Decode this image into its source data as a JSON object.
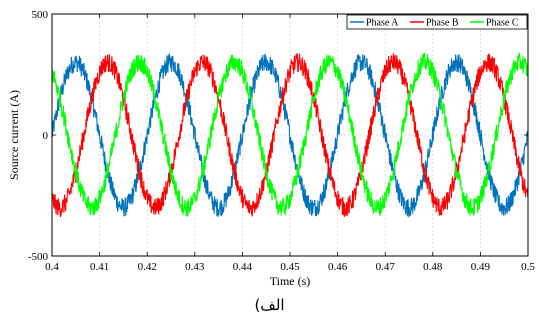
{
  "chart_data": {
    "type": "line",
    "xlabel": "Time (s)",
    "ylabel": "Source current (A)",
    "xlim": [
      0.4,
      0.5
    ],
    "ylim": [
      -500,
      500
    ],
    "x_ticks": [
      "0.4",
      "0.41",
      "0.42",
      "0.43",
      "0.44",
      "0.45",
      "0.46",
      "0.47",
      "0.48",
      "0.49",
      "0.5"
    ],
    "y_ticks": [
      "500",
      "0",
      "-500"
    ],
    "grid": true,
    "legend_position": "top-right",
    "signal": {
      "frequency_hz": 50,
      "amplitude_a": 300,
      "ripple_a": 40
    },
    "series": [
      {
        "name": "Phase A",
        "color": "#0072BD",
        "phase_deg": 0
      },
      {
        "name": "Phase B",
        "color": "#FF0000",
        "phase_deg": -120
      },
      {
        "name": "Phase C",
        "color": "#00FF00",
        "phase_deg": 120
      }
    ]
  },
  "caption": "الف)"
}
